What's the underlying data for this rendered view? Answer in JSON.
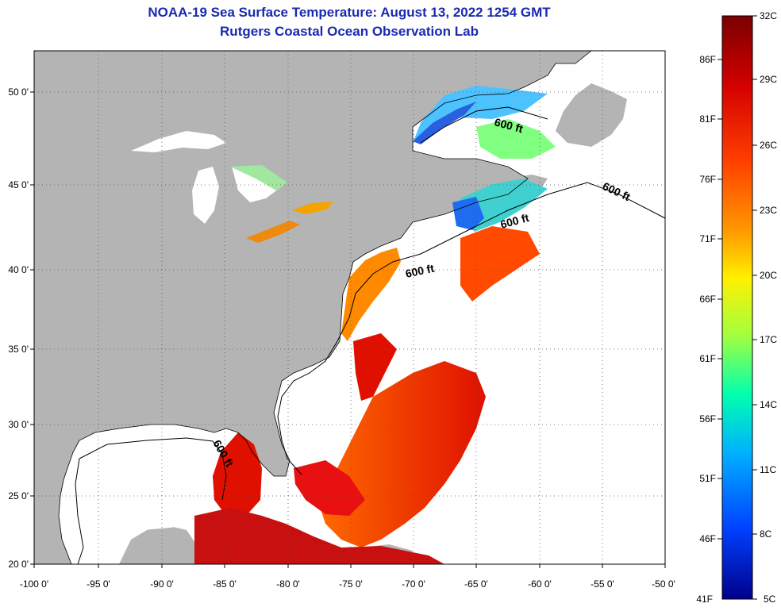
{
  "title": {
    "line1": "NOAA-19 Sea Surface Temperature:  August 13, 2022 1254 GMT",
    "line2": "Rutgers Coastal Ocean Observation Lab"
  },
  "map": {
    "lon_labels": [
      "-100 0'",
      "-95 0'",
      "-90 0'",
      "-85 0'",
      "-80 0'",
      "-75 0'",
      "-70 0'",
      "-65 0'",
      "-60 0'",
      "-55 0'",
      "-50 0'"
    ],
    "lat_labels": [
      "50 0'",
      "45 0'",
      "40 0'",
      "35 0'",
      "30 0'",
      "25 0'",
      "20 0'"
    ],
    "contour_labels": [
      "600 ft",
      "600 ft",
      "600 ft",
      "600 ft",
      "600 ft"
    ],
    "colors": {
      "land": "#b4b4b4",
      "water_nodata": "#ffffff",
      "grid": "#000000"
    }
  },
  "colorbar": {
    "celsius": [
      "32C",
      "29C",
      "26C",
      "23C",
      "20C",
      "17C",
      "14C",
      "11C",
      "8C",
      "5C"
    ],
    "fahrenheit": [
      "86F",
      "81F",
      "76F",
      "71F",
      "66F",
      "61F",
      "56F",
      "51F",
      "46F",
      "41F"
    ],
    "gradient": [
      "#7a0000",
      "#d40000",
      "#ff4000",
      "#ff9a00",
      "#fff000",
      "#a0ff40",
      "#00ffb0",
      "#00b0ff",
      "#0040ff",
      "#00008a"
    ]
  }
}
